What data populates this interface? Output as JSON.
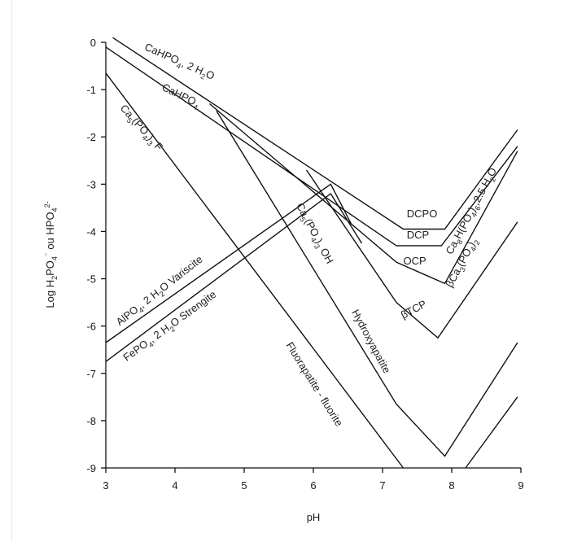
{
  "chart_data": {
    "type": "line",
    "xlabel": "pH",
    "ylabel_parts": [
      "Log H",
      "2",
      "PO",
      "4",
      "⁻",
      " ou HPO",
      "4",
      "2-"
    ],
    "xlim": [
      3,
      9
    ],
    "ylim": [
      -9,
      0
    ],
    "x_ticks": [
      3,
      4,
      5,
      6,
      7,
      8,
      9
    ],
    "y_ticks": [
      0,
      -1,
      -2,
      -3,
      -4,
      -5,
      -6,
      -7,
      -8,
      -9
    ],
    "grid": false,
    "series": [
      {
        "id": "dcpd",
        "points": [
          [
            3.1,
            0.1
          ],
          [
            7.3,
            -3.95
          ],
          [
            7.9,
            -3.95
          ],
          [
            8.95,
            -1.85
          ]
        ]
      },
      {
        "id": "dcpa",
        "points": [
          [
            3.0,
            -0.1
          ],
          [
            7.2,
            -4.3
          ],
          [
            7.85,
            -4.3
          ],
          [
            8.95,
            -2.2
          ]
        ]
      },
      {
        "id": "ocp",
        "points": [
          [
            4.5,
            -1.3
          ],
          [
            7.2,
            -4.65
          ],
          [
            7.9,
            -5.1
          ],
          [
            8.95,
            -2.3
          ]
        ]
      },
      {
        "id": "btcp",
        "points": [
          [
            5.9,
            -2.7
          ],
          [
            7.2,
            -5.5
          ],
          [
            7.8,
            -6.25
          ],
          [
            8.95,
            -3.8
          ]
        ]
      },
      {
        "id": "hydroxyapatite",
        "points": [
          [
            4.6,
            -1.45
          ],
          [
            7.2,
            -7.65
          ],
          [
            7.9,
            -8.75
          ],
          [
            8.95,
            -6.35
          ]
        ]
      },
      {
        "id": "fluorapatite",
        "points": [
          [
            3.0,
            -0.65
          ],
          [
            7.3,
            -9.0
          ]
        ]
      },
      {
        "id": "fluorapatite-right",
        "points": [
          [
            8.2,
            -9.0
          ],
          [
            8.95,
            -7.5
          ]
        ]
      },
      {
        "id": "variscite",
        "points": [
          [
            3.0,
            -6.35
          ],
          [
            6.25,
            -3.0
          ],
          [
            6.55,
            -3.85
          ]
        ]
      },
      {
        "id": "strengite",
        "points": [
          [
            3.0,
            -6.75
          ],
          [
            6.25,
            -3.2
          ],
          [
            6.7,
            -4.25
          ]
        ]
      }
    ],
    "labels": [
      {
        "id": "label-dcpd",
        "x": 3.55,
        "y": -0.15,
        "angle": 24,
        "parts": [
          [
            "CaHPO",
            0
          ],
          [
            "4",
            1
          ],
          [
            ", 2 H",
            0
          ],
          [
            "2",
            1
          ],
          [
            "O",
            0
          ]
        ]
      },
      {
        "id": "label-dcpa",
        "x": 3.8,
        "y": -1.0,
        "angle": 26,
        "parts": [
          [
            "CaHPO",
            0
          ],
          [
            "4",
            1
          ]
        ]
      },
      {
        "id": "label-fap-formula",
        "x": 3.2,
        "y": -1.4,
        "angle": 48,
        "parts": [
          [
            "Ca",
            0
          ],
          [
            "5",
            1
          ],
          [
            "(PO",
            0
          ],
          [
            "4",
            1
          ],
          [
            ")",
            0
          ],
          [
            "3",
            1
          ],
          [
            " F",
            0
          ]
        ]
      },
      {
        "id": "label-hap-formula",
        "x": 5.75,
        "y": -3.45,
        "angle": 62,
        "parts": [
          [
            "Ca",
            0
          ],
          [
            "5",
            1
          ],
          [
            "(PO",
            0
          ],
          [
            "4",
            1
          ],
          [
            ")",
            0
          ],
          [
            "3",
            1
          ],
          [
            " OH",
            0
          ]
        ]
      },
      {
        "id": "label-hydroxyapatite",
        "x": 6.55,
        "y": -5.7,
        "angle": 62,
        "parts": [
          [
            "Hydroxyapatite",
            0
          ]
        ]
      },
      {
        "id": "label-fluorapatite",
        "x": 5.6,
        "y": -6.4,
        "angle": 58,
        "parts": [
          [
            "Fluorapatite - fluorite",
            0
          ]
        ]
      },
      {
        "id": "label-variscite",
        "x": 3.2,
        "y": -6.0,
        "angle": -38,
        "parts": [
          [
            "AlPO",
            0
          ],
          [
            "4",
            1
          ],
          [
            ", 2 H",
            0
          ],
          [
            "2",
            1
          ],
          [
            "O Variscite",
            0
          ]
        ]
      },
      {
        "id": "label-strengite",
        "x": 3.3,
        "y": -6.75,
        "angle": -36,
        "parts": [
          [
            "FePO",
            0
          ],
          [
            "4",
            1
          ],
          [
            ", 2 H",
            0
          ],
          [
            "2",
            1
          ],
          [
            "O Strengite",
            0
          ]
        ]
      },
      {
        "id": "label-dcpo",
        "x": 7.35,
        "y": -3.7,
        "angle": 0,
        "parts": [
          [
            "DCPO",
            0
          ]
        ]
      },
      {
        "id": "label-dcp",
        "x": 7.35,
        "y": -4.15,
        "angle": 0,
        "parts": [
          [
            "DCP",
            0
          ]
        ]
      },
      {
        "id": "label-ocp",
        "x": 7.3,
        "y": -4.7,
        "angle": 0,
        "parts": [
          [
            "OCP",
            0
          ]
        ]
      },
      {
        "id": "label-btcp",
        "x": 7.3,
        "y": -5.85,
        "angle": -28,
        "parts": [
          [
            "βTCP",
            0
          ]
        ]
      },
      {
        "id": "label-ca8h",
        "x": 8.0,
        "y": -4.5,
        "angle": -62,
        "parts": [
          [
            "Ca",
            0
          ],
          [
            "8",
            1
          ],
          [
            "H(PO",
            0
          ],
          [
            "4",
            1
          ],
          [
            ")",
            0
          ],
          [
            "6",
            1
          ],
          [
            ",2.5 H",
            0
          ],
          [
            "2",
            1
          ],
          [
            "O",
            0
          ]
        ]
      },
      {
        "id": "label-bca3",
        "x": 8.0,
        "y": -5.2,
        "angle": -62,
        "parts": [
          [
            "βCa",
            0
          ],
          [
            "3",
            1
          ],
          [
            "(PO",
            0
          ],
          [
            "4",
            1
          ],
          [
            ")",
            0
          ],
          [
            "2",
            1
          ]
        ]
      }
    ]
  }
}
